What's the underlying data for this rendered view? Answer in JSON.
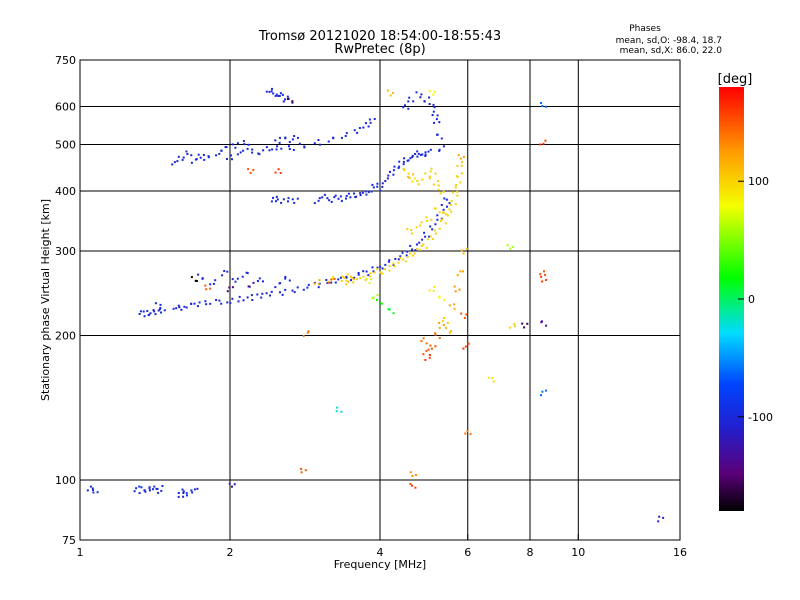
{
  "chart_data": {
    "type": "scatter",
    "title": "Tromsø 20121020 18:54:00-18:55:43",
    "subtitle": "RwPretec (8p)",
    "xlabel": "Frequency [MHz]",
    "ylabel": "Stationary phase Virtual Height [km]",
    "x_scale": "log",
    "y_scale": "log",
    "xlim": [
      1,
      16
    ],
    "ylim": [
      75,
      750
    ],
    "x_ticks": [
      1,
      2,
      4,
      6,
      8,
      10,
      16
    ],
    "x_tick_labels": [
      "1",
      "2",
      "4",
      "6",
      "8",
      "10",
      "16"
    ],
    "y_ticks": [
      75,
      100,
      200,
      300,
      400,
      500,
      600,
      750
    ],
    "y_tick_labels": [
      "75",
      "100",
      "200",
      "300",
      "400",
      "500",
      "600",
      "750"
    ],
    "grid": true,
    "stats": {
      "heading": "Phases",
      "o_line": "mean, sd,O: -98.4, 18.7",
      "x_line": "mean, sd,X:  86.0, 22.0"
    },
    "colorbar": {
      "label": "[deg]",
      "range": [
        -180,
        180
      ],
      "ticks": [
        100,
        0,
        -100
      ],
      "tick_labels": [
        "100",
        "0",
        "-100"
      ],
      "colormap": "rainbow: black-purple-blue-cyan-green-yellow-orange-red"
    },
    "series": [
      {
        "points": [
          [
            1.05,
            96,
            -100
          ],
          [
            1.07,
            95,
            -95
          ],
          [
            1.3,
            95,
            -100
          ],
          [
            1.33,
            96,
            -90
          ],
          [
            1.36,
            95,
            -105
          ],
          [
            1.39,
            96,
            -100
          ],
          [
            1.42,
            95,
            -95
          ],
          [
            1.45,
            96,
            -100
          ],
          [
            1.6,
            95,
            -100
          ],
          [
            1.65,
            94,
            -90
          ],
          [
            1.7,
            95,
            -105
          ],
          [
            1.6,
            93,
            -110
          ],
          [
            2.02,
            98,
            -120
          ],
          [
            4.65,
            97,
            160
          ],
          [
            4.66,
            103,
            130
          ],
          [
            1.33,
            222,
            -100
          ],
          [
            1.36,
            223,
            -95
          ],
          [
            1.39,
            222,
            -100
          ],
          [
            1.42,
            224,
            -110
          ],
          [
            1.44,
            231,
            -100
          ],
          [
            1.46,
            226,
            -95
          ],
          [
            1.56,
            228,
            -100
          ],
          [
            1.6,
            229,
            -105
          ],
          [
            1.66,
            231,
            -100
          ],
          [
            1.72,
            232,
            -100
          ],
          [
            1.8,
            233,
            -100
          ],
          [
            1.9,
            235,
            -100
          ],
          [
            2.0,
            236,
            -100
          ],
          [
            2.1,
            238,
            -100
          ],
          [
            2.2,
            240,
            -100
          ],
          [
            2.3,
            242,
            -100
          ],
          [
            2.4,
            244,
            -100
          ],
          [
            2.55,
            246,
            -100
          ],
          [
            2.7,
            249,
            -100
          ],
          [
            2.85,
            252,
            -100
          ],
          [
            3.0,
            255,
            -100
          ],
          [
            3.15,
            258,
            -100
          ],
          [
            3.3,
            261,
            -100
          ],
          [
            3.45,
            264,
            -100
          ],
          [
            3.6,
            267,
            -100
          ],
          [
            3.75,
            270,
            -100
          ],
          [
            3.9,
            275,
            -100
          ],
          [
            4.05,
            279,
            -100
          ],
          [
            4.2,
            284,
            -100
          ],
          [
            4.35,
            289,
            -100
          ],
          [
            4.5,
            296,
            -100
          ],
          [
            4.65,
            304,
            -100
          ],
          [
            4.8,
            313,
            -100
          ],
          [
            4.95,
            324,
            -100
          ],
          [
            5.1,
            337,
            -100
          ],
          [
            5.25,
            352,
            -100
          ],
          [
            5.38,
            370,
            -100
          ],
          [
            5.45,
            382,
            -100
          ],
          [
            1.75,
            265,
            -100
          ],
          [
            1.85,
            258,
            -100
          ],
          [
            1.95,
            270,
            -100
          ],
          [
            2.05,
            262,
            -100
          ],
          [
            2.15,
            268,
            -100
          ],
          [
            2.3,
            260,
            -100
          ],
          [
            1.7,
            262,
            -180
          ],
          [
            1.8,
            252,
            150
          ],
          [
            2.0,
            250,
            -150
          ],
          [
            2.2,
            255,
            -130
          ],
          [
            2.5,
            255,
            -100
          ],
          [
            2.6,
            262,
            -100
          ],
          [
            3.0,
            258,
            120
          ],
          [
            3.2,
            262,
            90
          ],
          [
            3.4,
            265,
            100
          ],
          [
            3.5,
            262,
            110
          ],
          [
            3.4,
            258,
            100
          ],
          [
            3.55,
            261,
            100
          ],
          [
            3.7,
            264,
            100
          ],
          [
            3.85,
            268,
            100
          ],
          [
            4.0,
            272,
            100
          ],
          [
            4.15,
            276,
            100
          ],
          [
            4.3,
            281,
            100
          ],
          [
            4.45,
            287,
            100
          ],
          [
            4.6,
            293,
            100
          ],
          [
            4.75,
            300,
            100
          ],
          [
            4.9,
            308,
            100
          ],
          [
            5.05,
            318,
            100
          ],
          [
            5.2,
            330,
            100
          ],
          [
            5.35,
            345,
            100
          ],
          [
            5.5,
            362,
            100
          ],
          [
            5.6,
            378,
            100
          ],
          [
            5.68,
            395,
            100
          ],
          [
            5.72,
            412,
            100
          ],
          [
            5.76,
            432,
            100
          ],
          [
            5.8,
            455,
            100
          ],
          [
            5.82,
            470,
            120
          ],
          [
            4.6,
            330,
            100
          ],
          [
            4.8,
            340,
            100
          ],
          [
            5.0,
            350,
            100
          ],
          [
            5.2,
            365,
            100
          ],
          [
            5.4,
            360,
            100
          ],
          [
            1.55,
            460,
            -100
          ],
          [
            1.6,
            470,
            -100
          ],
          [
            1.65,
            480,
            -100
          ],
          [
            1.7,
            462,
            -100
          ],
          [
            1.75,
            475,
            -100
          ],
          [
            1.8,
            468,
            -100
          ],
          [
            1.9,
            480,
            -100
          ],
          [
            1.95,
            490,
            -100
          ],
          [
            2.0,
            470,
            -100
          ],
          [
            2.05,
            498,
            -100
          ],
          [
            2.1,
            480,
            -100
          ],
          [
            2.15,
            504,
            -100
          ],
          [
            2.2,
            485,
            -100
          ],
          [
            2.3,
            482,
            -100
          ],
          [
            2.4,
            488,
            -100
          ],
          [
            2.5,
            490,
            -100
          ],
          [
            2.65,
            492,
            -100
          ],
          [
            2.8,
            498,
            -100
          ],
          [
            3.0,
            505,
            -100
          ],
          [
            3.2,
            512,
            -100
          ],
          [
            3.4,
            522,
            -100
          ],
          [
            3.6,
            535,
            -100
          ],
          [
            3.75,
            548,
            -100
          ],
          [
            3.85,
            560,
            -100
          ],
          [
            2.5,
            510,
            -100
          ],
          [
            2.6,
            512,
            -100
          ],
          [
            2.7,
            515,
            -100
          ],
          [
            2.4,
            645,
            -100
          ],
          [
            2.45,
            638,
            -100
          ],
          [
            2.5,
            632,
            -100
          ],
          [
            2.55,
            628,
            -100
          ],
          [
            2.6,
            622,
            -100
          ],
          [
            2.65,
            618,
            -160
          ],
          [
            2.45,
            385,
            -100
          ],
          [
            2.5,
            380,
            -100
          ],
          [
            2.6,
            385,
            -100
          ],
          [
            2.7,
            382,
            -100
          ],
          [
            3.0,
            382,
            -100
          ],
          [
            3.1,
            388,
            -100
          ],
          [
            3.2,
            384,
            -100
          ],
          [
            3.3,
            390,
            -100
          ],
          [
            3.4,
            386,
            -100
          ],
          [
            3.5,
            392,
            -100
          ],
          [
            3.6,
            392,
            -100
          ],
          [
            3.7,
            395,
            -100
          ],
          [
            3.8,
            398,
            -100
          ],
          [
            3.9,
            410,
            -100
          ],
          [
            4.0,
            405,
            -100
          ],
          [
            4.1,
            420,
            -100
          ],
          [
            4.2,
            435,
            -100
          ],
          [
            4.3,
            445,
            -100
          ],
          [
            4.4,
            455,
            -100
          ],
          [
            4.5,
            465,
            -100
          ],
          [
            4.6,
            468,
            -100
          ],
          [
            4.7,
            472,
            -100
          ],
          [
            4.8,
            478,
            -100
          ],
          [
            4.9,
            478,
            -100
          ],
          [
            5.0,
            482,
            -100
          ],
          [
            4.5,
            440,
            100
          ],
          [
            4.6,
            430,
            110
          ],
          [
            4.7,
            420,
            90
          ],
          [
            4.8,
            418,
            100
          ],
          [
            5.0,
            430,
            100
          ],
          [
            5.1,
            440,
            100
          ],
          [
            5.2,
            415,
            100
          ],
          [
            5.3,
            400,
            100
          ],
          [
            4.5,
            600,
            -100
          ],
          [
            4.6,
            620,
            -100
          ],
          [
            4.8,
            635,
            -100
          ],
          [
            4.95,
            620,
            -100
          ],
          [
            5.1,
            605,
            -100
          ],
          [
            5.15,
            580,
            -100
          ],
          [
            5.2,
            560,
            -100
          ],
          [
            5.25,
            520,
            -100
          ],
          [
            5.3,
            490,
            -100
          ],
          [
            5.1,
            640,
            80
          ],
          [
            4.2,
            640,
            110
          ],
          [
            4.9,
            195,
            140
          ],
          [
            4.95,
            185,
            150
          ],
          [
            5.0,
            180,
            160
          ],
          [
            5.1,
            190,
            150
          ],
          [
            5.2,
            200,
            140
          ],
          [
            5.3,
            210,
            120
          ],
          [
            5.4,
            215,
            100
          ],
          [
            5.5,
            205,
            110
          ],
          [
            5.6,
            230,
            120
          ],
          [
            5.7,
            250,
            130
          ],
          [
            5.8,
            270,
            120
          ],
          [
            5.9,
            300,
            110
          ],
          [
            5.9,
            220,
            150
          ],
          [
            5.95,
            190,
            160
          ],
          [
            5.1,
            250,
            90
          ],
          [
            5.3,
            240,
            80
          ],
          [
            3.8,
            260,
            70
          ],
          [
            3.9,
            240,
            60
          ],
          [
            4.0,
            235,
            20
          ],
          [
            4.2,
            225,
            10
          ],
          [
            3.2,
            260,
            150
          ],
          [
            2.2,
            440,
            150
          ],
          [
            2.5,
            440,
            160
          ],
          [
            2.8,
            105,
            150
          ],
          [
            2.85,
            202,
            140
          ],
          [
            3.3,
            140,
            -20
          ],
          [
            6.0,
            125,
            140
          ],
          [
            6.7,
            162,
            90
          ],
          [
            7.3,
            305,
            60
          ],
          [
            7.4,
            210,
            100
          ],
          [
            7.8,
            210,
            -160
          ],
          [
            8.5,
            605,
            -60
          ],
          [
            8.5,
            505,
            160
          ],
          [
            8.5,
            270,
            150
          ],
          [
            8.5,
            262,
            160
          ],
          [
            8.5,
            212,
            -130
          ],
          [
            8.5,
            152,
            -60
          ],
          [
            14.6,
            83,
            -110
          ]
        ]
      }
    ]
  }
}
